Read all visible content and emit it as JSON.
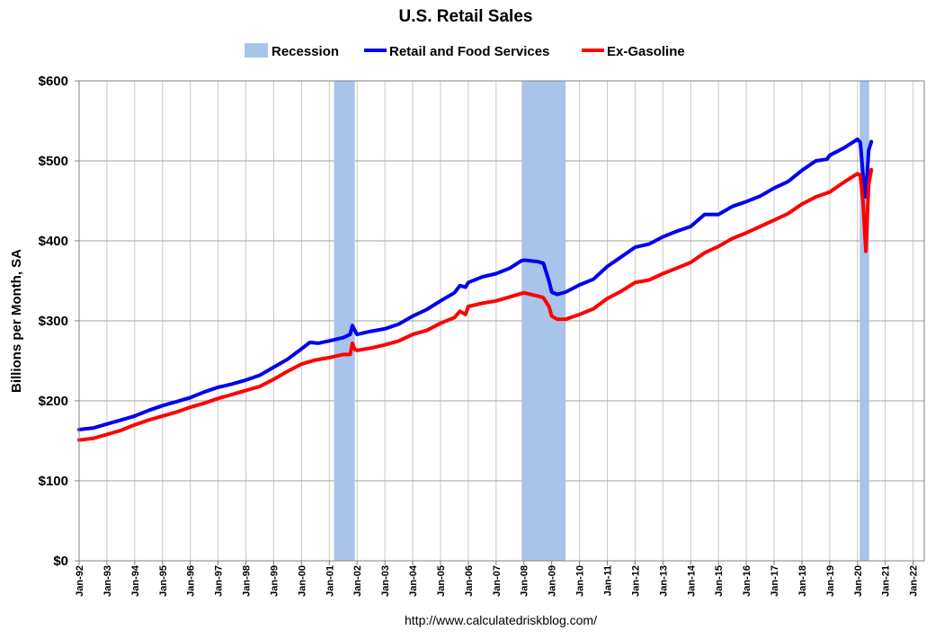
{
  "chart_data": {
    "type": "line",
    "title": "U.S. Retail Sales",
    "ylabel": "Billions per Month, SA",
    "xlabel": "",
    "ylim": [
      0,
      600
    ],
    "y_ticks": [
      {
        "value": 0,
        "label": "$0"
      },
      {
        "value": 100,
        "label": "$100"
      },
      {
        "value": 200,
        "label": "$200"
      },
      {
        "value": 300,
        "label": "$300"
      },
      {
        "value": 400,
        "label": "$400"
      },
      {
        "value": 500,
        "label": "$500"
      },
      {
        "value": 600,
        "label": "$600"
      }
    ],
    "x_ticks": [
      "Jan-92",
      "Jan-93",
      "Jan-94",
      "Jan-95",
      "Jan-96",
      "Jan-97",
      "Jan-98",
      "Jan-99",
      "Jan-00",
      "Jan-01",
      "Jan-02",
      "Jan-03",
      "Jan-04",
      "Jan-05",
      "Jan-06",
      "Jan-07",
      "Jan-08",
      "Jan-09",
      "Jan-10",
      "Jan-11",
      "Jan-12",
      "Jan-13",
      "Jan-14",
      "Jan-15",
      "Jan-16",
      "Jan-17",
      "Jan-18",
      "Jan-19",
      "Jan-20",
      "Jan-21",
      "Jan-22"
    ],
    "x_range_years": [
      1992,
      2022.4
    ],
    "legend": [
      {
        "name": "Recession",
        "color": "#a9c4ea",
        "kind": "box"
      },
      {
        "name": "Retail and Food Services",
        "color": "#0000ee",
        "kind": "line"
      },
      {
        "name": "Ex-Gasoline",
        "color": "#ff0000",
        "kind": "line"
      }
    ],
    "recessions": [
      {
        "start": 2001.17,
        "end": 2001.92
      },
      {
        "start": 2007.92,
        "end": 2009.5
      },
      {
        "start": 2020.08,
        "end": 2020.42
      }
    ],
    "series": [
      {
        "name": "Retail and Food Services",
        "color": "#0000ee",
        "points": [
          [
            1992.0,
            164
          ],
          [
            1992.5,
            166
          ],
          [
            1993.0,
            171
          ],
          [
            1993.5,
            176
          ],
          [
            1994.0,
            181
          ],
          [
            1994.5,
            188
          ],
          [
            1995.0,
            194
          ],
          [
            1995.5,
            199
          ],
          [
            1996.0,
            204
          ],
          [
            1996.5,
            211
          ],
          [
            1997.0,
            217
          ],
          [
            1997.5,
            221
          ],
          [
            1998.0,
            226
          ],
          [
            1998.5,
            232
          ],
          [
            1999.0,
            242
          ],
          [
            1999.5,
            252
          ],
          [
            2000.0,
            265
          ],
          [
            2000.3,
            273
          ],
          [
            2000.6,
            272
          ],
          [
            2001.0,
            275
          ],
          [
            2001.5,
            279
          ],
          [
            2001.75,
            283
          ],
          [
            2001.83,
            294
          ],
          [
            2001.92,
            288
          ],
          [
            2002.0,
            283
          ],
          [
            2002.5,
            287
          ],
          [
            2003.0,
            290
          ],
          [
            2003.5,
            296
          ],
          [
            2004.0,
            306
          ],
          [
            2004.5,
            314
          ],
          [
            2005.0,
            325
          ],
          [
            2005.5,
            335
          ],
          [
            2005.7,
            344
          ],
          [
            2005.9,
            342
          ],
          [
            2006.0,
            348
          ],
          [
            2006.5,
            355
          ],
          [
            2007.0,
            359
          ],
          [
            2007.5,
            366
          ],
          [
            2007.9,
            375
          ],
          [
            2008.0,
            376
          ],
          [
            2008.5,
            374
          ],
          [
            2008.7,
            372
          ],
          [
            2008.9,
            350
          ],
          [
            2009.0,
            336
          ],
          [
            2009.2,
            333
          ],
          [
            2009.5,
            336
          ],
          [
            2010.0,
            345
          ],
          [
            2010.5,
            352
          ],
          [
            2011.0,
            368
          ],
          [
            2011.5,
            380
          ],
          [
            2012.0,
            392
          ],
          [
            2012.5,
            396
          ],
          [
            2013.0,
            405
          ],
          [
            2013.5,
            412
          ],
          [
            2014.0,
            418
          ],
          [
            2014.5,
            433
          ],
          [
            2015.0,
            433
          ],
          [
            2015.5,
            443
          ],
          [
            2016.0,
            449
          ],
          [
            2016.5,
            456
          ],
          [
            2017.0,
            466
          ],
          [
            2017.5,
            474
          ],
          [
            2018.0,
            488
          ],
          [
            2018.5,
            500
          ],
          [
            2018.9,
            502
          ],
          [
            2019.0,
            507
          ],
          [
            2019.5,
            516
          ],
          [
            2020.0,
            527
          ],
          [
            2020.1,
            523
          ],
          [
            2020.2,
            482
          ],
          [
            2020.3,
            455
          ],
          [
            2020.4,
            513
          ],
          [
            2020.5,
            524
          ]
        ]
      },
      {
        "name": "Ex-Gasoline",
        "color": "#ff0000",
        "points": [
          [
            1992.0,
            151
          ],
          [
            1992.5,
            153
          ],
          [
            1993.0,
            158
          ],
          [
            1993.5,
            163
          ],
          [
            1994.0,
            170
          ],
          [
            1994.5,
            176
          ],
          [
            1995.0,
            181
          ],
          [
            1995.5,
            186
          ],
          [
            1996.0,
            192
          ],
          [
            1996.5,
            197
          ],
          [
            1997.0,
            203
          ],
          [
            1997.5,
            208
          ],
          [
            1998.0,
            213
          ],
          [
            1998.5,
            218
          ],
          [
            1999.0,
            227
          ],
          [
            1999.5,
            237
          ],
          [
            2000.0,
            246
          ],
          [
            2000.5,
            251
          ],
          [
            2001.0,
            254
          ],
          [
            2001.5,
            258
          ],
          [
            2001.75,
            258
          ],
          [
            2001.83,
            272
          ],
          [
            2001.92,
            264
          ],
          [
            2002.0,
            263
          ],
          [
            2002.5,
            266
          ],
          [
            2003.0,
            270
          ],
          [
            2003.5,
            275
          ],
          [
            2004.0,
            283
          ],
          [
            2004.5,
            288
          ],
          [
            2005.0,
            297
          ],
          [
            2005.5,
            304
          ],
          [
            2005.7,
            312
          ],
          [
            2005.9,
            308
          ],
          [
            2006.0,
            318
          ],
          [
            2006.5,
            322
          ],
          [
            2007.0,
            325
          ],
          [
            2007.5,
            330
          ],
          [
            2007.9,
            334
          ],
          [
            2008.0,
            335
          ],
          [
            2008.5,
            331
          ],
          [
            2008.7,
            329
          ],
          [
            2008.9,
            318
          ],
          [
            2009.0,
            306
          ],
          [
            2009.2,
            302
          ],
          [
            2009.5,
            302
          ],
          [
            2010.0,
            308
          ],
          [
            2010.5,
            315
          ],
          [
            2011.0,
            328
          ],
          [
            2011.5,
            337
          ],
          [
            2012.0,
            348
          ],
          [
            2012.5,
            351
          ],
          [
            2013.0,
            359
          ],
          [
            2013.5,
            366
          ],
          [
            2014.0,
            373
          ],
          [
            2014.5,
            385
          ],
          [
            2015.0,
            393
          ],
          [
            2015.5,
            403
          ],
          [
            2016.0,
            410
          ],
          [
            2016.5,
            418
          ],
          [
            2017.0,
            426
          ],
          [
            2017.5,
            434
          ],
          [
            2018.0,
            446
          ],
          [
            2018.5,
            455
          ],
          [
            2019.0,
            461
          ],
          [
            2019.5,
            473
          ],
          [
            2020.0,
            484
          ],
          [
            2020.1,
            482
          ],
          [
            2020.2,
            448
          ],
          [
            2020.3,
            387
          ],
          [
            2020.4,
            470
          ],
          [
            2020.5,
            489
          ]
        ]
      }
    ]
  },
  "source_text": "http://www.calculatedriskblog.com/"
}
